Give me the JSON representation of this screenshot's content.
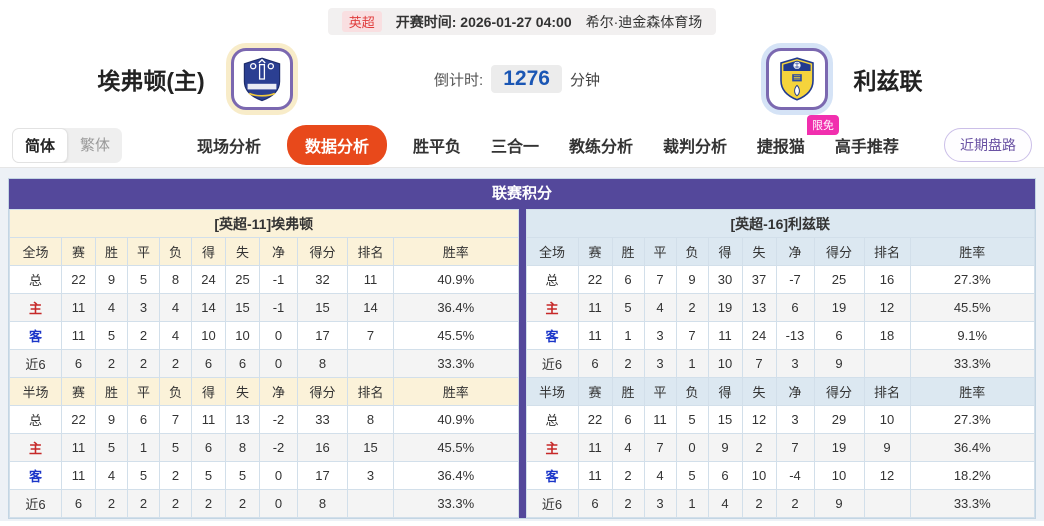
{
  "match_info": {
    "league": "英超",
    "kickoff_label": "开赛时间:",
    "kickoff_time": "2026-01-27 04:00",
    "venue": "希尔·迪金森体育场"
  },
  "teams": {
    "home_name": "埃弗顿(主)",
    "away_name": "利兹联",
    "home_crest": "everton-crest-icon",
    "away_crest": "leeds-crest-icon"
  },
  "countdown": {
    "label": "倒计时:",
    "value": "1276",
    "unit": "分钟"
  },
  "nav": {
    "lang": {
      "simplified": "简体",
      "traditional": "繁体"
    },
    "tabs": [
      {
        "label": "现场分析",
        "active": false
      },
      {
        "label": "数据分析",
        "active": true
      },
      {
        "label": "胜平负",
        "active": false
      },
      {
        "label": "三合一",
        "active": false
      },
      {
        "label": "教练分析",
        "active": false
      },
      {
        "label": "裁判分析",
        "active": false
      },
      {
        "label": "捷报猫",
        "active": false,
        "badge": "限免"
      },
      {
        "label": "高手推荐",
        "active": false
      }
    ],
    "recent_button": "近期盘路"
  },
  "colors": {
    "accent_purple": "#54489b",
    "active_tab_orange": "#e8491b",
    "home_header_bg": "#fbf2d9",
    "away_header_bg": "#dce8f1",
    "home_row_label": "#c62828",
    "away_row_label": "#1a35c8",
    "countdown_blue": "#1a56b4",
    "badge_pink": "#f12fae"
  },
  "standings": {
    "title": "联赛积分",
    "first_col_full": "全场",
    "first_col_half": "半场",
    "stat_columns": [
      "赛",
      "胜",
      "平",
      "负",
      "得",
      "失",
      "净",
      "得分",
      "排名",
      "胜率"
    ],
    "red_label": "主",
    "blue_label": "客",
    "sides": [
      {
        "key": "home",
        "team_header": "[英超-11]埃弗顿",
        "full_rows": [
          [
            "总",
            "22",
            "9",
            "5",
            "8",
            "24",
            "25",
            "-1",
            "32",
            "11",
            "40.9%"
          ],
          [
            "主",
            "11",
            "4",
            "3",
            "4",
            "14",
            "15",
            "-1",
            "15",
            "14",
            "36.4%"
          ],
          [
            "客",
            "11",
            "5",
            "2",
            "4",
            "10",
            "10",
            "0",
            "17",
            "7",
            "45.5%"
          ],
          [
            "近6",
            "6",
            "2",
            "2",
            "2",
            "6",
            "6",
            "0",
            "8",
            "",
            "33.3%"
          ]
        ],
        "half_rows": [
          [
            "总",
            "22",
            "9",
            "6",
            "7",
            "11",
            "13",
            "-2",
            "33",
            "8",
            "40.9%"
          ],
          [
            "主",
            "11",
            "5",
            "1",
            "5",
            "6",
            "8",
            "-2",
            "16",
            "15",
            "45.5%"
          ],
          [
            "客",
            "11",
            "4",
            "5",
            "2",
            "5",
            "5",
            "0",
            "17",
            "3",
            "36.4%"
          ],
          [
            "近6",
            "6",
            "2",
            "2",
            "2",
            "2",
            "2",
            "0",
            "8",
            "",
            "33.3%"
          ]
        ]
      },
      {
        "key": "away",
        "team_header": "[英超-16]利兹联",
        "full_rows": [
          [
            "总",
            "22",
            "6",
            "7",
            "9",
            "30",
            "37",
            "-7",
            "25",
            "16",
            "27.3%"
          ],
          [
            "主",
            "11",
            "5",
            "4",
            "2",
            "19",
            "13",
            "6",
            "19",
            "12",
            "45.5%"
          ],
          [
            "客",
            "11",
            "1",
            "3",
            "7",
            "11",
            "24",
            "-13",
            "6",
            "18",
            "9.1%"
          ],
          [
            "近6",
            "6",
            "2",
            "3",
            "1",
            "10",
            "7",
            "3",
            "9",
            "",
            "33.3%"
          ]
        ],
        "half_rows": [
          [
            "总",
            "22",
            "6",
            "11",
            "5",
            "15",
            "12",
            "3",
            "29",
            "10",
            "27.3%"
          ],
          [
            "主",
            "11",
            "4",
            "7",
            "0",
            "9",
            "2",
            "7",
            "19",
            "9",
            "36.4%"
          ],
          [
            "客",
            "11",
            "2",
            "4",
            "5",
            "6",
            "10",
            "-4",
            "10",
            "12",
            "18.2%"
          ],
          [
            "近6",
            "6",
            "2",
            "3",
            "1",
            "4",
            "2",
            "2",
            "9",
            "",
            "33.3%"
          ]
        ]
      }
    ]
  }
}
